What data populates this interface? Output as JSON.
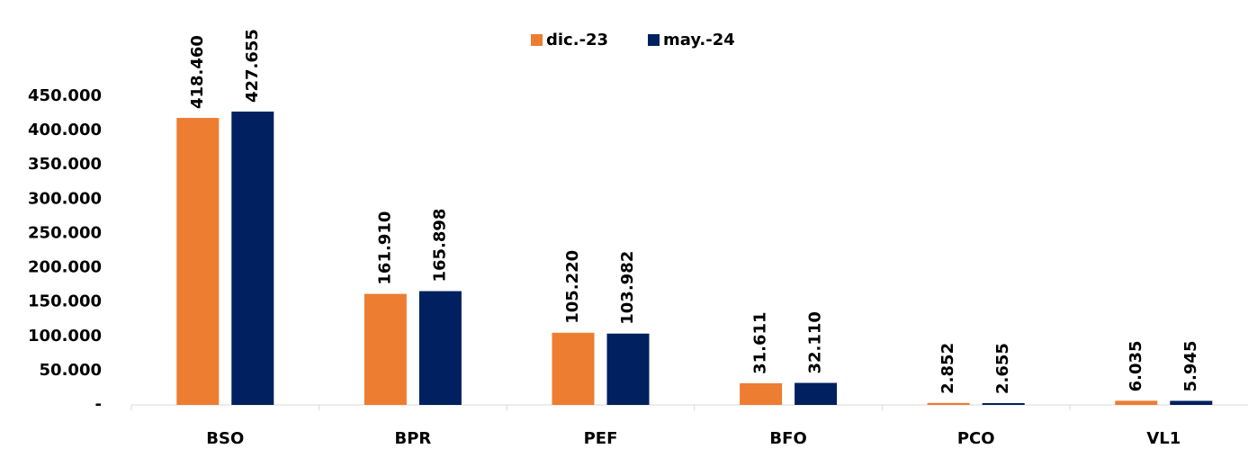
{
  "chart_data": {
    "type": "bar",
    "categories": [
      "BSO",
      "BPR",
      "PEF",
      "BFO",
      "PCO",
      "VL1"
    ],
    "series": [
      {
        "name": "dic.-23",
        "color": "#ed7d31",
        "values": [
          418460,
          161910,
          105220,
          31611,
          2852,
          6035
        ],
        "value_labels": [
          "418.460",
          "161.910",
          "105.220",
          "31.611",
          "2.852",
          "6.035"
        ]
      },
      {
        "name": "may.-24",
        "color": "#002060",
        "values": [
          427655,
          165898,
          103982,
          32110,
          2655,
          5945
        ],
        "value_labels": [
          "427.655",
          "165.898",
          "103.982",
          "32.110",
          "2.655",
          "5.945"
        ]
      }
    ],
    "ylim": [
      0,
      450000
    ],
    "yticks": [
      {
        "value": 0,
        "label": "-"
      },
      {
        "value": 50000,
        "label": "50.000"
      },
      {
        "value": 100000,
        "label": "100.000"
      },
      {
        "value": 150000,
        "label": "150.000"
      },
      {
        "value": 200000,
        "label": "200.000"
      },
      {
        "value": 250000,
        "label": "250.000"
      },
      {
        "value": 300000,
        "label": "300.000"
      },
      {
        "value": 350000,
        "label": "350.000"
      },
      {
        "value": 400000,
        "label": "400.000"
      },
      {
        "value": 450000,
        "label": "450.000"
      }
    ],
    "legend": "top",
    "grid": false
  }
}
